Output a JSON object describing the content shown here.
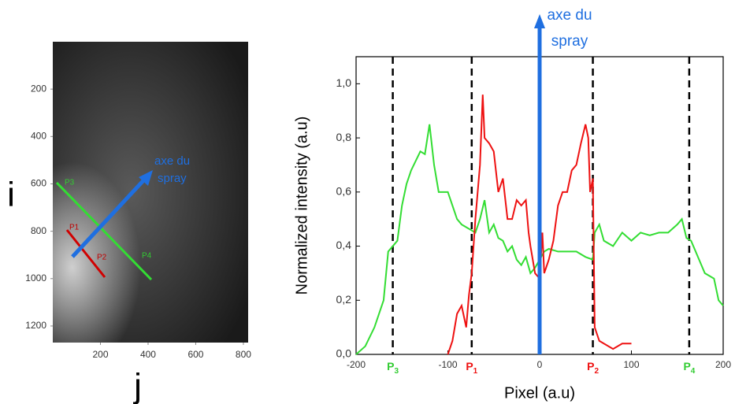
{
  "chart_data": [
    {
      "type": "image",
      "xlabel": "j",
      "ylabel": "i",
      "xlim": [
        0,
        820
      ],
      "ylim": [
        0,
        1270
      ],
      "xticks": [
        200,
        400,
        600,
        800
      ],
      "yticks": [
        200,
        400,
        600,
        800,
        1000,
        1200
      ],
      "annotations": [
        {
          "text": [
            "axe du",
            "spray"
          ],
          "color": "#1f6fe0"
        },
        {
          "text": [
            "P1"
          ],
          "color": "#c00000"
        },
        {
          "text": [
            "P2"
          ],
          "color": "#c00000"
        },
        {
          "text": [
            "P3"
          ],
          "color": "#33cc33"
        },
        {
          "text": [
            "P4"
          ],
          "color": "#33cc33"
        }
      ]
    },
    {
      "type": "line",
      "xlabel": "Pixel (a.u)",
      "ylabel": "Normalized intensity (a.u)",
      "xlim": [
        -200,
        200
      ],
      "ylim": [
        0,
        1.1
      ],
      "xticks": [
        -200,
        -100,
        0,
        100,
        200
      ],
      "yticks": [
        {
          "value": 0,
          "label": "0,0"
        },
        {
          "value": 0.2,
          "label": "0,2"
        },
        {
          "value": 0.4,
          "label": "0,4"
        },
        {
          "value": 0.6,
          "label": "0,6"
        },
        {
          "value": 0.8,
          "label": "0,8"
        },
        {
          "value": 1,
          "label": "1,0"
        }
      ],
      "series": [
        {
          "color": "#33dd33",
          "x": [
            -200,
            -190,
            -180,
            -170,
            -165,
            -160,
            -155,
            -150,
            -145,
            -140,
            -130,
            -125,
            -120,
            -115,
            -110,
            -100,
            -95,
            -90,
            -85,
            -80,
            -75,
            -70,
            -65,
            -60,
            -55,
            -50,
            -45,
            -40,
            -35,
            -30,
            -25,
            -20,
            -15,
            -10,
            -5,
            0,
            5,
            10,
            20,
            30,
            40,
            50,
            58,
            60,
            65,
            70,
            80,
            90,
            100,
            110,
            120,
            130,
            140,
            150,
            155,
            160,
            165,
            170,
            180,
            190,
            195,
            200
          ],
          "values": [
            0,
            0.03,
            0.1,
            0.2,
            0.38,
            0.4,
            0.42,
            0.55,
            0.63,
            0.68,
            0.75,
            0.74,
            0.85,
            0.7,
            0.6,
            0.6,
            0.55,
            0.5,
            0.48,
            0.47,
            0.46,
            0.45,
            0.5,
            0.57,
            0.45,
            0.48,
            0.43,
            0.42,
            0.38,
            0.4,
            0.35,
            0.33,
            0.36,
            0.3,
            0.32,
            0.35,
            0.38,
            0.39,
            0.38,
            0.38,
            0.38,
            0.36,
            0.35,
            0.45,
            0.48,
            0.42,
            0.4,
            0.45,
            0.42,
            0.45,
            0.44,
            0.45,
            0.45,
            0.48,
            0.5,
            0.43,
            0.42,
            0.38,
            0.3,
            0.28,
            0.2,
            0.18
          ]
        },
        {
          "color": "#ee1111",
          "x": [
            -100,
            -95,
            -90,
            -85,
            -80,
            -77,
            -74,
            -70,
            -65,
            -62,
            -60,
            -55,
            -50,
            -45,
            -40,
            -35,
            -30,
            -25,
            -20,
            -15,
            -12,
            -10,
            -5,
            0,
            3,
            5,
            10,
            15,
            20,
            25,
            30,
            35,
            40,
            45,
            50,
            53,
            55,
            58,
            60,
            65,
            70,
            80,
            90,
            100
          ],
          "values": [
            0,
            0.05,
            0.15,
            0.18,
            0.1,
            0.22,
            0.3,
            0.5,
            0.7,
            0.96,
            0.8,
            0.78,
            0.75,
            0.6,
            0.65,
            0.5,
            0.5,
            0.57,
            0.55,
            0.57,
            0.45,
            0.4,
            0.3,
            0.28,
            0.45,
            0.3,
            0.35,
            0.42,
            0.55,
            0.6,
            0.6,
            0.68,
            0.7,
            0.78,
            0.85,
            0.8,
            0.6,
            0.65,
            0.1,
            0.05,
            0.04,
            0.02,
            0.04,
            0.04
          ]
        }
      ],
      "markers": [
        {
          "x": -160,
          "label": "P",
          "sub": "3",
          "color": "#33cc33"
        },
        {
          "x": -74,
          "label": "P",
          "sub": "1",
          "color": "#ee1111"
        },
        {
          "x": 58,
          "label": "P",
          "sub": "2",
          "color": "#ee1111"
        },
        {
          "x": 163,
          "label": "P",
          "sub": "4",
          "color": "#33cc33"
        }
      ],
      "arrow": {
        "x": 0,
        "text": [
          "axe du",
          "spray"
        ],
        "color": "#1f6fe0"
      }
    }
  ]
}
